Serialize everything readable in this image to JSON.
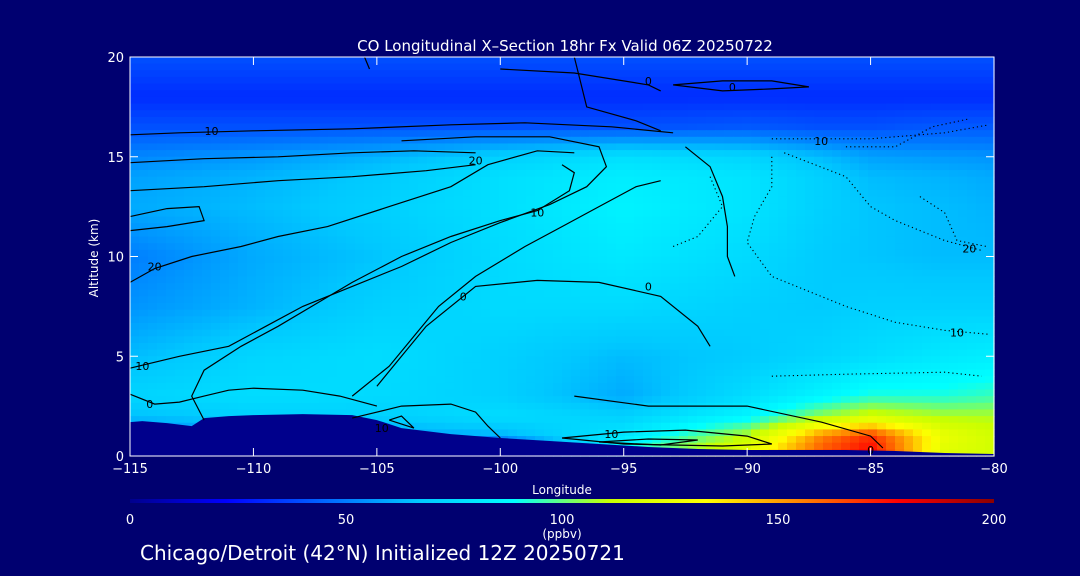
{
  "chart_data": {
    "type": "heatmap",
    "title": "CO Longitudinal X–Section 18hr  Fx Valid 06Z 20250722",
    "xlabel": "Longitude",
    "ylabel": "Altitude (km)",
    "xlim": [
      -115,
      -80
    ],
    "ylim": [
      0,
      20
    ],
    "x_ticks": [
      -115,
      -110,
      -105,
      -100,
      -95,
      -90,
      -85,
      -80
    ],
    "x_tick_labels": [
      "−115",
      "−110",
      "−105",
      "−100",
      "−95",
      "−90",
      "−85",
      "−80"
    ],
    "y_ticks": [
      0,
      5,
      10,
      15,
      20
    ],
    "y_tick_labels": [
      "0",
      "5",
      "10",
      "15",
      "20"
    ],
    "colorbar": {
      "min": 0,
      "max": 200,
      "ticks": [
        0,
        50,
        100,
        150,
        200
      ],
      "tick_labels": [
        "0",
        "50",
        "100",
        "150",
        "200"
      ],
      "unit": "(ppbv)",
      "colors": [
        "#00008c",
        "#0000ff",
        "#0064ff",
        "#00c8ff",
        "#00ffff",
        "#c8ff00",
        "#ffff00",
        "#ff8000",
        "#ff0000",
        "#8b0000"
      ]
    },
    "field": {
      "x": [
        -115,
        -110,
        -105,
        -100,
        -95,
        -90,
        -87,
        -85,
        -82,
        -80
      ],
      "y": [
        0,
        1,
        2,
        3,
        5,
        7.5,
        10,
        12.5,
        14,
        15,
        16.5,
        18,
        20
      ],
      "values_ppbv": [
        [
          0,
          0,
          0,
          0,
          95,
          130,
          165,
          180,
          120,
          115
        ],
        [
          50,
          55,
          58,
          62,
          80,
          110,
          155,
          170,
          125,
          115
        ],
        [
          65,
          70,
          70,
          75,
          70,
          85,
          105,
          115,
          108,
          108
        ],
        [
          72,
          75,
          74,
          70,
          60,
          75,
          85,
          92,
          92,
          95
        ],
        [
          64,
          72,
          75,
          70,
          64,
          68,
          72,
          75,
          80,
          82
        ],
        [
          55,
          62,
          70,
          74,
          74,
          70,
          68,
          70,
          70,
          70
        ],
        [
          50,
          60,
          66,
          74,
          80,
          74,
          68,
          66,
          64,
          64
        ],
        [
          60,
          64,
          70,
          76,
          84,
          78,
          70,
          66,
          64,
          62
        ],
        [
          58,
          62,
          68,
          76,
          82,
          78,
          70,
          64,
          62,
          60
        ],
        [
          52,
          56,
          62,
          70,
          76,
          72,
          64,
          58,
          56,
          55
        ],
        [
          40,
          40,
          40,
          40,
          40,
          42,
          40,
          40,
          42,
          42
        ],
        [
          32,
          32,
          32,
          32,
          32,
          32,
          32,
          32,
          32,
          32
        ],
        [
          40,
          40,
          40,
          40,
          40,
          40,
          40,
          40,
          40,
          40
        ]
      ]
    },
    "terrain_km": {
      "x": [
        -115,
        -114.5,
        -113.5,
        -112.5,
        -112,
        -111,
        -110,
        -108,
        -106,
        -105,
        -104,
        -102,
        -100,
        -98,
        -96,
        -94,
        -92,
        -90,
        -88,
        -86,
        -84,
        -82,
        -80
      ],
      "y": [
        1.7,
        1.75,
        1.65,
        1.5,
        1.9,
        2.0,
        2.05,
        2.1,
        2.05,
        1.8,
        1.4,
        1.1,
        0.9,
        0.75,
        0.6,
        0.45,
        0.35,
        0.3,
        0.3,
        0.3,
        0.25,
        0.15,
        0.1
      ]
    },
    "contours": [
      {
        "style": "solid",
        "label": "0",
        "label_at": [
          -101.5,
          8.0
        ],
        "points": [
          [
            -106,
            3
          ],
          [
            -104.5,
            4.5
          ],
          [
            -103.5,
            6
          ],
          [
            -102.5,
            7.5
          ],
          [
            -101,
            9
          ],
          [
            -99,
            10.5
          ],
          [
            -97.5,
            11.5
          ],
          [
            -96,
            12.5
          ],
          [
            -94.5,
            13.5
          ],
          [
            -93.5,
            13.8
          ]
        ]
      },
      {
        "style": "solid",
        "label": "0",
        "label_at": [
          -94,
          8.5
        ],
        "points": [
          [
            -105,
            3.5
          ],
          [
            -104,
            5
          ],
          [
            -103,
            6.5
          ],
          [
            -101,
            8.5
          ],
          [
            -98.5,
            8.8
          ],
          [
            -96,
            8.7
          ],
          [
            -93.5,
            8.0
          ],
          [
            -92,
            6.5
          ],
          [
            -91.5,
            5.5
          ]
        ]
      },
      {
        "style": "solid",
        "label": "0",
        "label_at": [
          -85,
          0.3
        ],
        "points": [
          [
            -97,
            3
          ],
          [
            -94,
            2.5
          ],
          [
            -90,
            2.5
          ],
          [
            -87,
            1.7
          ],
          [
            -85,
            1.0
          ],
          [
            -84.5,
            0.4
          ]
        ]
      },
      {
        "style": "solid",
        "label": "0",
        "label_at": [
          -114.2,
          2.6
        ],
        "points": [
          [
            -115,
            3.1
          ],
          [
            -114,
            2.6
          ],
          [
            -113,
            2.7
          ],
          [
            -112,
            3.0
          ],
          [
            -111,
            3.3
          ],
          [
            -110,
            3.4
          ],
          [
            -108,
            3.3
          ],
          [
            -106.5,
            3.0
          ],
          [
            -105,
            2.5
          ]
        ]
      },
      {
        "style": "solid",
        "label": "10",
        "label_at": [
          -114.5,
          4.5
        ],
        "points": [
          [
            -115,
            4.4
          ],
          [
            -113,
            5.0
          ],
          [
            -111,
            5.5
          ],
          [
            -109.5,
            6.5
          ],
          [
            -108,
            7.5
          ],
          [
            -106,
            8.5
          ],
          [
            -104,
            9.5
          ],
          [
            -102,
            10.7
          ],
          [
            -100,
            11.7
          ],
          [
            -98,
            12.6
          ],
          [
            -96.5,
            13.5
          ],
          [
            -95.7,
            14.5
          ],
          [
            -96,
            15.5
          ],
          [
            -98,
            16.0
          ],
          [
            -101,
            16.0
          ],
          [
            -104,
            15.8
          ]
        ]
      },
      {
        "style": "solid",
        "label": "10",
        "label_at": [
          -98.5,
          12.2
        ],
        "points": [
          [
            -112,
            1.8
          ],
          [
            -112.5,
            3.0
          ],
          [
            -112,
            4.3
          ],
          [
            -110.5,
            5.5
          ],
          [
            -109,
            6.5
          ],
          [
            -107.5,
            7.6
          ],
          [
            -106,
            8.7
          ],
          [
            -104,
            10.0
          ],
          [
            -102,
            11.0
          ],
          [
            -100,
            11.8
          ],
          [
            -98.5,
            12.3
          ],
          [
            -97.2,
            13.3
          ],
          [
            -97,
            14.2
          ],
          [
            -97.5,
            14.6
          ]
        ]
      },
      {
        "style": "solid",
        "label": "10",
        "label_at": [
          -111.7,
          16.3
        ],
        "points": [
          [
            -115,
            16.1
          ],
          [
            -113,
            16.2
          ],
          [
            -110,
            16.3
          ],
          [
            -106,
            16.4
          ],
          [
            -102,
            16.6
          ],
          [
            -99,
            16.7
          ],
          [
            -95.5,
            16.5
          ],
          [
            -93,
            16.2
          ]
        ]
      },
      {
        "style": "solid",
        "label": "20",
        "label_at": [
          -114,
          9.5
        ],
        "points": [
          [
            -115,
            8.7
          ],
          [
            -114,
            9.4
          ],
          [
            -112.5,
            10.0
          ],
          [
            -110.5,
            10.5
          ],
          [
            -109,
            11.0
          ],
          [
            -107,
            11.5
          ],
          [
            -104.5,
            12.5
          ],
          [
            -102,
            13.5
          ],
          [
            -100.5,
            14.6
          ],
          [
            -98.5,
            15.3
          ],
          [
            -97,
            15.2
          ]
        ]
      },
      {
        "style": "solid",
        "label": "20",
        "label_at": [
          -101,
          14.8
        ],
        "points": [
          [
            -115,
            14.7
          ],
          [
            -112,
            14.9
          ],
          [
            -109,
            15.0
          ],
          [
            -106,
            15.2
          ],
          [
            -103.5,
            15.3
          ],
          [
            -101,
            15.2
          ]
        ]
      },
      {
        "style": "solid",
        "label": "",
        "label_at": null,
        "points": [
          [
            -115,
            13.3
          ],
          [
            -112,
            13.5
          ],
          [
            -109,
            13.8
          ],
          [
            -106,
            14.0
          ],
          [
            -103,
            14.3
          ],
          [
            -101,
            14.6
          ]
        ]
      },
      {
        "style": "solid",
        "label": "",
        "label_at": null,
        "points": [
          [
            -115,
            12.0
          ],
          [
            -113.5,
            12.4
          ],
          [
            -112.2,
            12.5
          ],
          [
            -112,
            11.8
          ],
          [
            -113.5,
            11.5
          ],
          [
            -115,
            11.3
          ]
        ]
      },
      {
        "style": "solid",
        "label": "",
        "label_at": null,
        "points": [
          [
            -92.5,
            15.5
          ],
          [
            -91.5,
            14.5
          ],
          [
            -91,
            13.0
          ],
          [
            -90.8,
            11.5
          ],
          [
            -90.8,
            10.0
          ],
          [
            -90.5,
            9.0
          ]
        ]
      },
      {
        "style": "solid",
        "label": "10",
        "label_at": [
          -104.8,
          1.4
        ],
        "points": [
          [
            -106,
            1.9
          ],
          [
            -104,
            2.5
          ],
          [
            -102,
            2.6
          ],
          [
            -101,
            2.2
          ],
          [
            -100.5,
            1.5
          ],
          [
            -100,
            0.9
          ]
        ]
      },
      {
        "style": "solid",
        "label": "",
        "label_at": null,
        "points": [
          [
            -104.5,
            1.8
          ],
          [
            -103.5,
            1.4
          ],
          [
            -104,
            2.0
          ],
          [
            -104.5,
            1.8
          ]
        ]
      },
      {
        "style": "solid",
        "label": "10",
        "label_at": [
          -95.5,
          1.1
        ],
        "points": [
          [
            -97.5,
            0.9
          ],
          [
            -95,
            1.2
          ],
          [
            -92.5,
            1.3
          ],
          [
            -90,
            1.0
          ],
          [
            -89,
            0.6
          ],
          [
            -91,
            0.5
          ],
          [
            -95,
            0.6
          ],
          [
            -97.5,
            0.9
          ]
        ]
      },
      {
        "style": "solid",
        "label": "",
        "label_at": null,
        "points": [
          [
            -96,
            0.7
          ],
          [
            -94,
            0.85
          ],
          [
            -92,
            0.8
          ],
          [
            -93.5,
            0.55
          ],
          [
            -96,
            0.7
          ]
        ]
      },
      {
        "style": "solid",
        "label": "0",
        "label_at": [
          -94,
          18.8
        ],
        "points": [
          [
            -100,
            19.4
          ],
          [
            -97,
            19.2
          ],
          [
            -94,
            18.6
          ],
          [
            -93.5,
            18.3
          ]
        ]
      },
      {
        "style": "solid",
        "label": "0",
        "label_at": [
          -90.6,
          18.5
        ],
        "points": [
          [
            -93,
            18.6
          ],
          [
            -91,
            18.8
          ],
          [
            -89,
            18.8
          ],
          [
            -87.5,
            18.5
          ],
          [
            -89,
            18.4
          ],
          [
            -91,
            18.3
          ],
          [
            -93,
            18.6
          ]
        ]
      },
      {
        "style": "solid",
        "label": "",
        "label_at": null,
        "points": [
          [
            -97,
            20
          ],
          [
            -96.8,
            19.0
          ],
          [
            -96.5,
            17.5
          ],
          [
            -94.5,
            16.8
          ],
          [
            -93.5,
            16.3
          ]
        ]
      },
      {
        "style": "solid",
        "label": "",
        "label_at": null,
        "points": [
          [
            -105.5,
            20
          ],
          [
            -105.3,
            19.4
          ]
        ]
      },
      {
        "style": "dotted",
        "label": "10",
        "label_at": [
          -87,
          15.8
        ],
        "points": [
          [
            -89,
            15.9
          ],
          [
            -85,
            15.9
          ],
          [
            -82,
            16.2
          ],
          [
            -80.2,
            16.6
          ]
        ]
      },
      {
        "style": "dotted",
        "label": "20",
        "label_at": [
          -81,
          10.4
        ],
        "points": [
          [
            -88.5,
            15.2
          ],
          [
            -86,
            14.0
          ],
          [
            -85,
            12.5
          ],
          [
            -84,
            11.8
          ],
          [
            -82,
            10.8
          ],
          [
            -80.5,
            10.3
          ]
        ]
      },
      {
        "style": "dotted",
        "label": "10",
        "label_at": [
          -81.5,
          6.2
        ],
        "points": [
          [
            -89,
            15.0
          ],
          [
            -89,
            13.5
          ],
          [
            -89.7,
            12.0
          ],
          [
            -90,
            10.7
          ],
          [
            -89,
            9.0
          ],
          [
            -86,
            7.5
          ],
          [
            -84,
            6.7
          ],
          [
            -82,
            6.3
          ],
          [
            -80.2,
            6.1
          ]
        ]
      },
      {
        "style": "dotted",
        "label": "",
        "label_at": null,
        "points": [
          [
            -91.5,
            14.0
          ],
          [
            -91,
            12.5
          ],
          [
            -92,
            11.0
          ],
          [
            -93,
            10.5
          ]
        ]
      },
      {
        "style": "dotted",
        "label": "",
        "label_at": null,
        "points": [
          [
            -89,
            4.0
          ],
          [
            -86,
            4.1
          ],
          [
            -82,
            4.2
          ],
          [
            -80.5,
            4.0
          ]
        ]
      },
      {
        "style": "dotted",
        "label": "",
        "label_at": null,
        "points": [
          [
            -83,
            13.0
          ],
          [
            -82,
            12.2
          ],
          [
            -81.5,
            10.8
          ],
          [
            -80.3,
            10.5
          ]
        ]
      },
      {
        "style": "dotted",
        "label": "",
        "label_at": null,
        "points": [
          [
            -86,
            15.5
          ],
          [
            -84,
            15.5
          ],
          [
            -82.5,
            16.5
          ],
          [
            -81,
            16.9
          ]
        ]
      }
    ]
  },
  "caption": "Chicago/Detroit (42°N) Initialized 12Z 20250721"
}
